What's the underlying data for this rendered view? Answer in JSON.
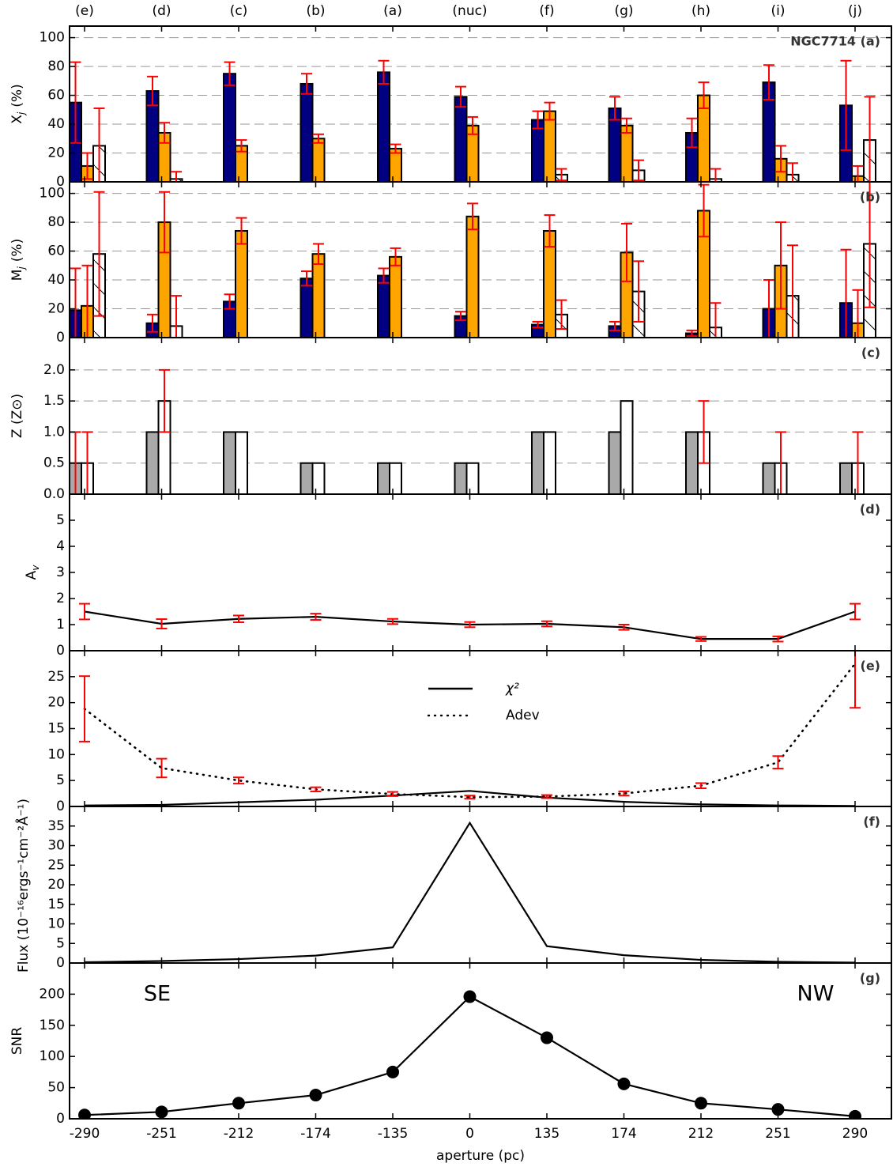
{
  "chart_data": [
    {
      "type": "bar",
      "label": "NGC7714 (a)",
      "ylabel": [
        "X",
        "j",
        "(%)"
      ],
      "top_categories": [
        "(e)",
        "(d)",
        "(c)",
        "(b)",
        "(a)",
        "(nuc)",
        "(f)",
        "(g)",
        "(h)",
        "(i)",
        "(j)"
      ],
      "ylim": [
        0,
        108
      ],
      "yticks": [
        0,
        20,
        40,
        60,
        80,
        100
      ],
      "grid": true,
      "error_color": "#ff0000",
      "series": [
        {
          "color": "#000080",
          "values": [
            55,
            63,
            75,
            68,
            76,
            59,
            43,
            51,
            34,
            69,
            53
          ],
          "errors": [
            28,
            10,
            8,
            7,
            8,
            7,
            6,
            8,
            10,
            12,
            31
          ]
        },
        {
          "color": "#ffa500",
          "values": [
            11,
            34,
            25,
            30,
            23,
            39,
            49,
            39,
            60,
            16,
            4
          ],
          "errors": [
            9,
            7,
            4,
            3,
            3,
            6,
            6,
            5,
            9,
            9,
            7
          ]
        },
        {
          "color": "#ffffff",
          "hatch": true,
          "values": [
            25,
            2,
            0,
            0,
            0,
            0,
            5,
            8,
            2,
            5,
            29
          ],
          "errors": [
            26,
            5,
            0,
            0,
            0,
            0,
            4,
            7,
            7,
            8,
            30
          ]
        }
      ]
    },
    {
      "type": "bar",
      "label": "(b)",
      "ylabel": [
        "M",
        "j",
        "(%)"
      ],
      "ylim": [
        0,
        108
      ],
      "yticks": [
        0,
        20,
        40,
        60,
        80,
        100
      ],
      "grid": true,
      "error_color": "#ff0000",
      "series": [
        {
          "color": "#000080",
          "values": [
            19,
            10,
            25,
            41,
            43,
            15,
            9,
            8,
            3,
            20,
            24
          ],
          "errors": [
            29,
            6,
            5,
            5,
            5,
            3,
            2,
            3,
            2,
            20,
            37
          ]
        },
        {
          "color": "#ffa500",
          "values": [
            22,
            80,
            74,
            58,
            56,
            84,
            74,
            59,
            88,
            50,
            10
          ],
          "errors": [
            28,
            21,
            9,
            7,
            6,
            9,
            11,
            20,
            18,
            30,
            23
          ]
        },
        {
          "color": "#ffffff",
          "hatch": true,
          "values": [
            58,
            8,
            0,
            0,
            0,
            0,
            16,
            32,
            7,
            29,
            65
          ],
          "errors": [
            43,
            21,
            0,
            0,
            0,
            0,
            10,
            21,
            17,
            35,
            44
          ]
        }
      ]
    },
    {
      "type": "bar",
      "label": "(c)",
      "ylabel": "Z  (Z⊙)",
      "ylim": [
        0,
        2.52
      ],
      "yticks": [
        {
          "value": 0,
          "label": "0.0"
        },
        0.5,
        {
          "value": 1,
          "label": "1.0"
        },
        1.5,
        {
          "value": 2,
          "label": "2.0"
        }
      ],
      "grid": true,
      "error_color": "#ff0000",
      "series": [
        {
          "color": "#a9a9a9",
          "values": [
            0.5,
            1,
            1,
            0.5,
            0.5,
            0.5,
            1,
            1,
            1,
            0.5,
            0.5
          ],
          "errors": [
            0.5,
            0,
            0,
            0,
            0,
            0,
            0,
            0,
            0,
            0,
            0
          ]
        },
        {
          "color": "#ffffff",
          "values": [
            0.5,
            1.5,
            1,
            0.5,
            0.5,
            0.5,
            1,
            1.5,
            1,
            0.5,
            0.5
          ],
          "errors": [
            0.5,
            0.5,
            0,
            0,
            0,
            0,
            0,
            0,
            0.5,
            0.5,
            0.5
          ]
        }
      ]
    },
    {
      "type": "line",
      "label": "(d)",
      "ylabel": [
        "A",
        "v"
      ],
      "ylim": [
        0,
        6
      ],
      "yticks": [
        0,
        1,
        2,
        3,
        4,
        5
      ],
      "grid": false,
      "error_color": "#ff0000",
      "series": [
        {
          "color": "#000000",
          "linestyle": "solid",
          "values": [
            1.5,
            1.03,
            1.22,
            1.3,
            1.12,
            1.0,
            1.03,
            0.9,
            0.45,
            0.45,
            1.5
          ],
          "errors": [
            0.3,
            0.18,
            0.13,
            0.12,
            0.1,
            0.1,
            0.1,
            0.1,
            0.08,
            0.1,
            0.3
          ]
        }
      ]
    },
    {
      "type": "line",
      "label": "(e)",
      "ylim": [
        0,
        30
      ],
      "yticks": [
        0,
        5,
        10,
        15,
        20,
        25
      ],
      "grid": false,
      "error_color": "#ff0000",
      "legend": "center",
      "series": [
        {
          "name": "χ²",
          "color": "#000000",
          "linestyle": "solid",
          "values": [
            0.2,
            0.3,
            0.8,
            1.3,
            2.1,
            3.0,
            1.7,
            0.9,
            0.4,
            0.2,
            0.1
          ]
        },
        {
          "name": "Adev",
          "color": "#000000",
          "linestyle": "dotted",
          "values": [
            18.8,
            7.4,
            5.0,
            3.3,
            2.4,
            1.8,
            1.9,
            2.5,
            4.0,
            8.5,
            27.5
          ],
          "errors": [
            6.3,
            1.8,
            0.6,
            0.4,
            0.4,
            0.3,
            0.3,
            0.4,
            0.5,
            1.2,
            8.5
          ]
        }
      ]
    },
    {
      "type": "line",
      "label": "(f)",
      "ylabel": "Flux (10⁻¹⁶ergs⁻¹cm⁻²Å⁻¹)",
      "ylim": [
        0,
        40
      ],
      "yticks": [
        0,
        5,
        10,
        15,
        20,
        25,
        30,
        35
      ],
      "grid": false,
      "series": [
        {
          "color": "#000000",
          "linestyle": "solid",
          "values": [
            0.2,
            0.5,
            1.0,
            1.9,
            4.0,
            35.8,
            4.3,
            2.0,
            0.8,
            0.3,
            0.1
          ]
        }
      ]
    },
    {
      "type": "line",
      "label": "(g)",
      "ylabel": "SNR",
      "annotations": [
        "SE",
        "NW"
      ],
      "categories": [
        "-290",
        "-251",
        "-212",
        "-174",
        "-135",
        "0",
        "135",
        "174",
        "212",
        "251",
        "290"
      ],
      "xlabel": "aperture (pc)",
      "ylim": [
        0,
        250
      ],
      "yticks": [
        0,
        50,
        100,
        150,
        200
      ],
      "grid": false,
      "markers": true,
      "series": [
        {
          "color": "#000000",
          "linestyle": "solid",
          "values": [
            6,
            11,
            25,
            38,
            75,
            196,
            130,
            56,
            25,
            15,
            4
          ]
        }
      ]
    }
  ]
}
